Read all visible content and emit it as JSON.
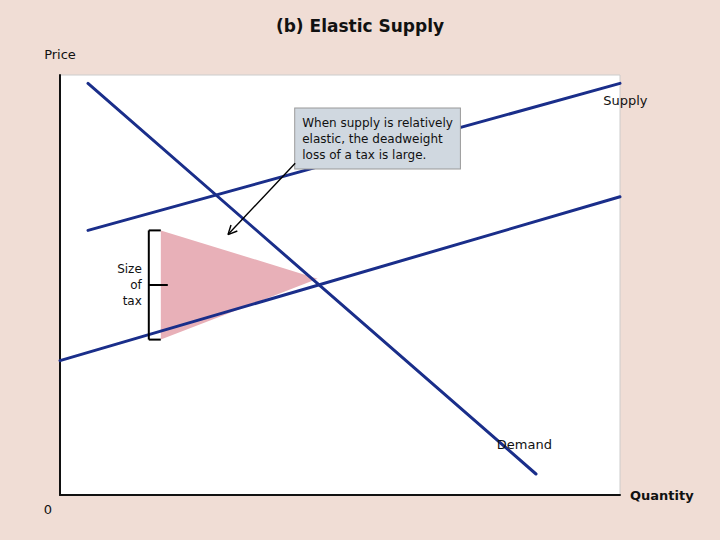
{
  "chart_data": {
    "type": "line",
    "title": "(b) Elastic Supply",
    "xlabel": "Quantity",
    "ylabel": "Price",
    "zero_label": "0",
    "xlim": [
      0,
      10
    ],
    "ylim": [
      0,
      10
    ],
    "xticks": [],
    "yticks": [],
    "tick_labels": false,
    "grid": false,
    "background_color": "#f0ddd5",
    "plot_background_color": "#ffffff",
    "axis_color": "#111111",
    "series": [
      {
        "color": "#1a2e8a",
        "x": [
          0.5,
          8.5
        ],
        "values": [
          9.8,
          0.5
        ]
      },
      {
        "color": "#1a2e8a",
        "x": [
          0.5,
          10.0
        ],
        "values": [
          6.3,
          9.8
        ]
      },
      {
        "color": "#1a2e8a",
        "x": [
          0.0,
          10.0
        ],
        "values": [
          3.2,
          7.1
        ]
      }
    ],
    "deadweight_loss": {
      "points": [
        [
          1.8,
          6.3
        ],
        [
          4.6,
          5.15
        ],
        [
          1.8,
          3.7
        ]
      ],
      "color": "#e8b0b8"
    },
    "brace": {
      "x": 1.8,
      "y_top": 6.3,
      "y_bottom": 3.7,
      "label": "Size\nof\ntax"
    },
    "annotations": [
      {
        "text": "Supply",
        "x": 9.7,
        "y": 9.4
      },
      {
        "text": "Demand",
        "x": 7.8,
        "y": 1.2
      },
      {
        "text": "When supply is relatively\nelastic, the deadweight\nloss of a tax is large.",
        "x": 4.2,
        "y": 9.2,
        "box_color": "#d0d8e0",
        "arrow_from": [
          4.2,
          7.9
        ],
        "arrow_to": [
          3.0,
          6.2
        ]
      }
    ]
  }
}
